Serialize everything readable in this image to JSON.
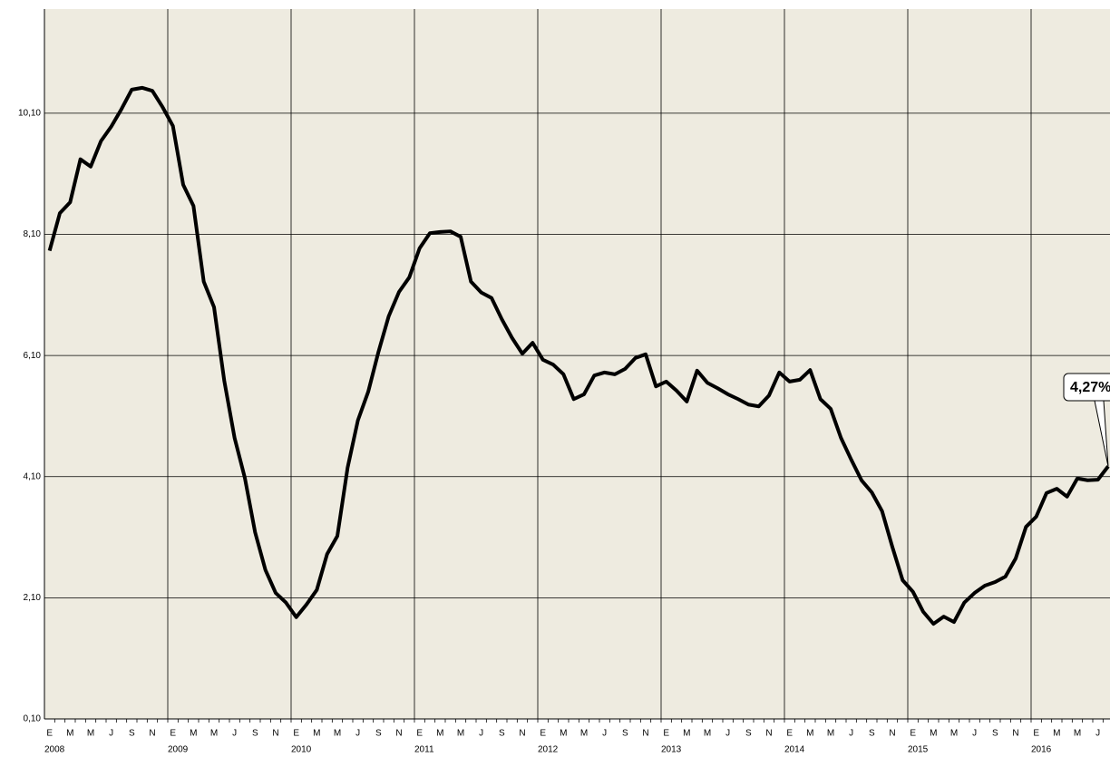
{
  "chart_data": {
    "type": "line",
    "categories": [
      "E",
      null,
      "M",
      null,
      "M",
      null,
      "J",
      null,
      "S",
      null,
      "N",
      null,
      "E",
      null,
      "M",
      null,
      "M",
      null,
      "J",
      null,
      "S",
      null,
      "N",
      null,
      "E",
      null,
      "M",
      null,
      "M",
      null,
      "J",
      null,
      "S",
      null,
      "N",
      null,
      "E",
      null,
      "M",
      null,
      "M",
      null,
      "J",
      null,
      "S",
      null,
      "N",
      null,
      "E",
      null,
      "M",
      null,
      "M",
      null,
      "J",
      null,
      "S",
      null,
      "N",
      null,
      "E",
      null,
      "M",
      null,
      "M",
      null,
      "J",
      null,
      "S",
      null,
      "N",
      null,
      "E",
      null,
      "M",
      null,
      "M",
      null,
      "J",
      null,
      "S",
      null,
      "N",
      null,
      "E",
      null,
      "M",
      null,
      "M",
      null,
      "J",
      null,
      "S",
      null,
      "N",
      null,
      "E",
      null,
      "M",
      null,
      "M",
      null,
      "J",
      null
    ],
    "year_labels": [
      "2008",
      "2009",
      "2010",
      "2011",
      "2012",
      "2013",
      "2014",
      "2015",
      "2016"
    ],
    "series": [
      {
        "color": "#000000",
        "values": [
          7.83,
          8.45,
          8.63,
          9.34,
          9.22,
          9.64,
          9.88,
          10.17,
          10.49,
          10.52,
          10.47,
          10.2,
          9.89,
          8.92,
          8.57,
          7.32,
          6.9,
          5.68,
          4.74,
          4.08,
          3.18,
          2.56,
          2.18,
          2.02,
          1.78,
          1.99,
          2.23,
          2.82,
          3.12,
          4.25,
          5.03,
          5.5,
          6.16,
          6.75,
          7.15,
          7.39,
          7.87,
          8.12,
          8.14,
          8.15,
          8.06,
          7.32,
          7.14,
          7.05,
          6.7,
          6.39,
          6.13,
          6.31,
          6.03,
          5.95,
          5.79,
          5.38,
          5.46,
          5.77,
          5.82,
          5.79,
          5.88,
          6.06,
          6.12,
          5.59,
          5.67,
          5.52,
          5.34,
          5.85,
          5.65,
          5.56,
          5.46,
          5.38,
          5.29,
          5.26,
          5.44,
          5.82,
          5.67,
          5.7,
          5.86,
          5.38,
          5.22,
          4.74,
          4.38,
          4.04,
          3.84,
          3.53,
          2.94,
          2.39,
          2.2,
          1.87,
          1.67,
          1.79,
          1.7,
          2.02,
          2.18,
          2.3,
          2.36,
          2.45,
          2.75,
          3.27,
          3.44,
          3.83,
          3.9,
          3.77,
          4.07,
          4.04,
          4.05,
          4.27
        ]
      }
    ],
    "annotation": "4,27%",
    "ylim": [
      0.1,
      11.82
    ],
    "yticks": [
      {
        "value": 0.1,
        "label": "0,10"
      },
      {
        "value": 2.1,
        "label": "2,10"
      },
      {
        "value": 4.1,
        "label": "4,10"
      },
      {
        "value": 6.1,
        "label": "6,10"
      },
      {
        "value": 8.1,
        "label": "8,10"
      },
      {
        "value": 10.1,
        "label": "10,10"
      }
    ],
    "grid": true,
    "background": "#eeebe0"
  }
}
